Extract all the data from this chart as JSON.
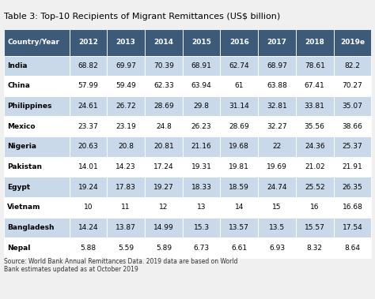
{
  "title": "Table 3: Top-10 Recipients of Migrant Remittances (US$ billion)",
  "columns": [
    "Country/Year",
    "2012",
    "2013",
    "2014",
    "2015",
    "2016",
    "2017",
    "2018",
    "2019e"
  ],
  "rows": [
    [
      "India",
      "68.82",
      "69.97",
      "70.39",
      "68.91",
      "62.74",
      "68.97",
      "78.61",
      "82.2"
    ],
    [
      "China",
      "57.99",
      "59.49",
      "62.33",
      "63.94",
      "61",
      "63.88",
      "67.41",
      "70.27"
    ],
    [
      "Philippines",
      "24.61",
      "26.72",
      "28.69",
      "29.8",
      "31.14",
      "32.81",
      "33.81",
      "35.07"
    ],
    [
      "Mexico",
      "23.37",
      "23.19",
      "24.8",
      "26.23",
      "28.69",
      "32.27",
      "35.56",
      "38.66"
    ],
    [
      "Nigeria",
      "20.63",
      "20.8",
      "20.81",
      "21.16",
      "19.68",
      "22",
      "24.36",
      "25.37"
    ],
    [
      "Pakistan",
      "14.01",
      "14.23",
      "17.24",
      "19.31",
      "19.81",
      "19.69",
      "21.02",
      "21.91"
    ],
    [
      "Egypt",
      "19.24",
      "17.83",
      "19.27",
      "18.33",
      "18.59",
      "24.74",
      "25.52",
      "26.35"
    ],
    [
      "Vietnam",
      "10",
      "11",
      "12",
      "13",
      "14",
      "15",
      "16",
      "16.68"
    ],
    [
      "Bangladesh",
      "14.24",
      "13.87",
      "14.99",
      "15.3",
      "13.57",
      "13.5",
      "15.57",
      "17.54"
    ],
    [
      "Nepal",
      "5.88",
      "5.59",
      "5.89",
      "6.73",
      "6.61",
      "6.93",
      "8.32",
      "8.64"
    ]
  ],
  "source_text": "Source: World Bank Annual Remittances Data. 2019 data are based on World\nBank estimates updated as at October 2019",
  "header_bg": "#3d5a78",
  "header_fg": "#ffffff",
  "row_bg_blue": "#c9d9ea",
  "row_bg_white": "#ffffff",
  "row_fg": "#000000",
  "fig_bg": "#f0f0f0",
  "title_color": "#000000",
  "source_color": "#333333",
  "col_widths": [
    1.65,
    0.95,
    0.95,
    0.95,
    0.95,
    0.95,
    0.95,
    0.95,
    0.95
  ]
}
